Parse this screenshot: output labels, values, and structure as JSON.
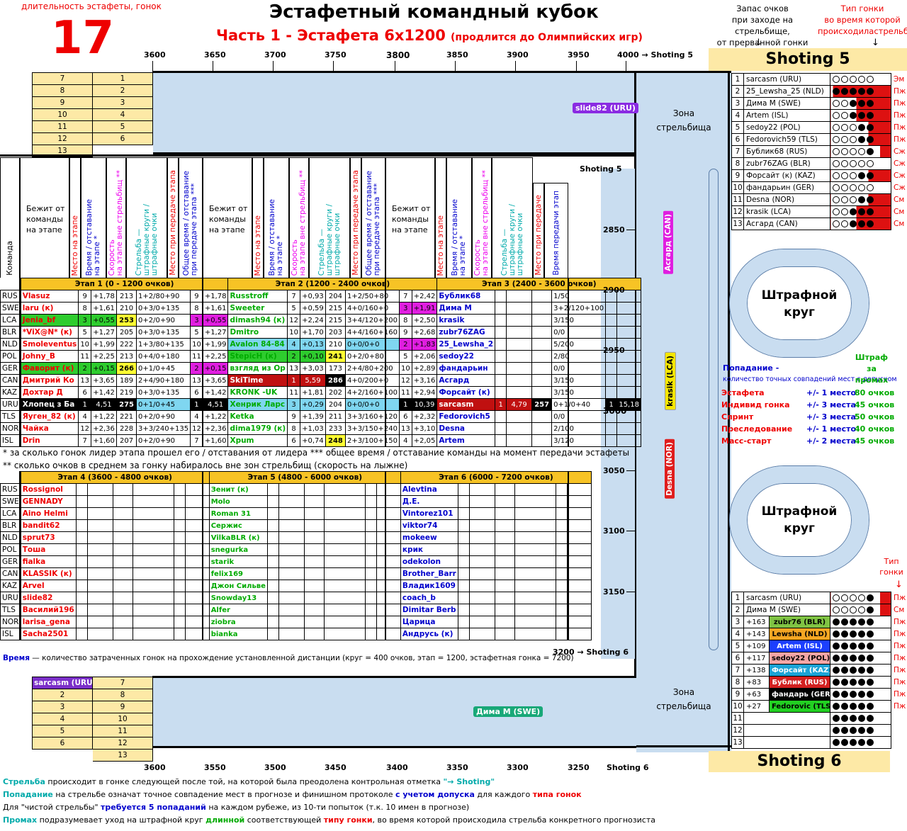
{
  "header": {
    "count_label": "длительность эстафеты, гонок",
    "count": "17",
    "title": "Эстафетный командный кубок",
    "subtitle": "Часть 1 - Эстафета 6х1200",
    "subtitle_note": "(продлится до Олимпийских игр)",
    "reserve_label": "Запас очков\nпри заходе на стрельбище,\nот прерванной гонки",
    "race_type_label": "Тип гонки\nво время которой\nпроисходиластрельба"
  },
  "top_axis": {
    "ticks": [
      "3600",
      "3650",
      "3700",
      "3750",
      "3800",
      "3850",
      "3900",
      "3950",
      "4000 → Shoting 5"
    ]
  },
  "bottom_axis": {
    "ticks": [
      "3600",
      "3550",
      "3500",
      "3450",
      "3400",
      "3350",
      "3300",
      "3250",
      "Shoting 6"
    ]
  },
  "right_axis": {
    "ticks": [
      "2850",
      "2900",
      "2950",
      "3000",
      "3050",
      "3100",
      "3150"
    ],
    "top_label": "Shoting 5",
    "bottom_label": "3200 → Shoting 6"
  },
  "zones": {
    "shooting": "Зона\nстрельбища",
    "penalty": "Штрафной\nкруг"
  },
  "top_slots": {
    "left": [
      "7",
      "8",
      "9",
      "10",
      "11",
      "12",
      "13"
    ],
    "right": [
      "1",
      "2",
      "3",
      "4",
      "5",
      "6"
    ]
  },
  "bottom_slots": {
    "left": [
      "sarcasm (URU)",
      "2",
      "3",
      "4",
      "5",
      "6"
    ],
    "right": [
      "7",
      "8",
      "9",
      "10",
      "11",
      "12",
      "13"
    ]
  },
  "chips": {
    "slide82": "slide82 (URU)",
    "dima": "Дима М (SWE)",
    "asgard": "Асгард (CAN)",
    "krasik": "krasik (LCA)",
    "desna": "Desna (NOR)"
  },
  "col_headers": {
    "team": "Команда",
    "runner": "Бежит от\nкоманды\nна этапе",
    "place": "Место на этапе",
    "time": "Время / отставание\nна этапе *",
    "speed": "Скорость\nна этапе вне стрельбищ **",
    "shoot": "Стрельба —\nштрафные круги /\nштрафные очки",
    "handoff_place": "Место при передаче этапа",
    "total": "Общее время / отставание\nпри передаче этапа ***",
    "handoff_place3": "Место при передаче",
    "handoff_time3": "Время передачи этап",
    "shoting5": "Shoting 5"
  },
  "stage_titles": [
    "Этап 1  (0 - 1200 очков)",
    "Этап 2  (1200 - 2400 очков)",
    "Этап 3  (2400 - 3600 очков)",
    "Этап 4  (3600 - 4800 очков)",
    "Этап 5  (4800 - 6000 очков)",
    "Этап 6  (6000 - 7200 очков)"
  ],
  "teams": [
    "RUS",
    "SWE",
    "LCA",
    "BLR",
    "NLD",
    "POL",
    "GER",
    "CAN",
    "KAZ",
    "URU",
    "TLS",
    "NOR",
    "ISL"
  ],
  "stage1": [
    [
      "Vlasuz",
      "9",
      "+1,78",
      "213",
      "1+2/80+90",
      "9",
      "+1,78"
    ],
    [
      "laru (к)",
      "8",
      "+1,61",
      "210",
      "0+3/0+135",
      "8",
      "+1,61"
    ],
    [
      "Jenia_bf",
      "3",
      "+0,55",
      "253",
      "0+2/0+90",
      "3",
      "+0,55"
    ],
    [
      "*ViX@N* (к)",
      "5",
      "+1,27",
      "205",
      "0+3/0+135",
      "5",
      "+1,27"
    ],
    [
      "Smoleventus",
      "10",
      "+1,99",
      "222",
      "1+3/80+135",
      "10",
      "+1,99"
    ],
    [
      "Johny_B",
      "11",
      "+2,25",
      "213",
      "0+4/0+180",
      "11",
      "+2,25"
    ],
    [
      "Фаворит (к)",
      "2",
      "+0,15",
      "266",
      "0+1/0+45",
      "2",
      "+0,15"
    ],
    [
      "Дмитрий Ко",
      "13",
      "+3,65",
      "189",
      "2+4/90+180",
      "13",
      "+3,65"
    ],
    [
      "Дохтар Д",
      "6",
      "+1,42",
      "219",
      "0+3/0+135",
      "6",
      "+1,42"
    ],
    [
      "Хлопец з Ба",
      "1",
      "4,51",
      "275",
      "0+1/0+45",
      "1",
      "4,51"
    ],
    [
      "Яуген_82 (к)",
      "4",
      "+1,22",
      "221",
      "0+2/0+90",
      "4",
      "+1,22"
    ],
    [
      "Чайка",
      "12",
      "+2,36",
      "228",
      "3+3/240+135",
      "12",
      "+2,36"
    ],
    [
      "Drin",
      "7",
      "+1,60",
      "207",
      "0+2/0+90",
      "7",
      "+1,60"
    ]
  ],
  "stage2": [
    [
      "Russtroff",
      "7",
      "+0,93",
      "204",
      "1+2/50+80",
      "7",
      "+2,42"
    ],
    [
      "Sweeter",
      "5",
      "+0,59",
      "215",
      "4+0/160+0",
      "3",
      "+1,91"
    ],
    [
      "dimash94 (к)",
      "12",
      "+2,24",
      "215",
      "3+4/120+200",
      "8",
      "+2,50"
    ],
    [
      "Dmitro",
      "10",
      "+1,70",
      "203",
      "4+4/160+160",
      "9",
      "+2,68"
    ],
    [
      "Avalon 84-84",
      "4",
      "+0,13",
      "210",
      "0+0/0+0",
      "2",
      "+1,83"
    ],
    [
      "StepicH (к)",
      "2",
      "+0,10",
      "241",
      "0+2/0+80",
      "5",
      "+2,06"
    ],
    [
      "взгляд из Ор",
      "13",
      "+3,03",
      "173",
      "2+4/80+200",
      "10",
      "+2,89"
    ],
    [
      "SkiTime",
      "1",
      "5,59",
      "286",
      "4+0/200+0",
      "12",
      "+3,16"
    ],
    [
      "KRONK -UK",
      "11",
      "+1,81",
      "202",
      "4+2/160+100",
      "11",
      "+2,94"
    ],
    [
      "Хенрик Ларс",
      "3",
      "+0,29",
      "204",
      "0+0/0+0",
      "1",
      "10,39"
    ],
    [
      "Ketka",
      "9",
      "+1,39",
      "211",
      "3+3/160+120",
      "6",
      "+2,32"
    ],
    [
      "dima1979 (к)",
      "8",
      "+1,03",
      "233",
      "3+3/150+240",
      "13",
      "+3,10"
    ],
    [
      "Xpum",
      "6",
      "+0,74",
      "248",
      "2+3/100+150",
      "4",
      "+2,05"
    ]
  ],
  "stage3": [
    [
      "Бублик68",
      "",
      "",
      "",
      "1/50",
      "",
      ""
    ],
    [
      "Дима М",
      "",
      "",
      "",
      "3+2/120+100",
      "",
      ""
    ],
    [
      "krasik",
      "",
      "",
      "",
      "3/150",
      "",
      ""
    ],
    [
      "zubr76ZAG",
      "",
      "",
      "",
      "0/0",
      "",
      ""
    ],
    [
      "25_Lewsha_2",
      "",
      "",
      "",
      "5/200",
      "",
      ""
    ],
    [
      "sedoy22",
      "",
      "",
      "",
      "2/80",
      "",
      ""
    ],
    [
      "фандарьин",
      "",
      "",
      "",
      "0/0",
      "",
      ""
    ],
    [
      "Асгард",
      "",
      "",
      "",
      "3/150",
      "",
      ""
    ],
    [
      "Форсайт (к)",
      "",
      "",
      "",
      "3/150",
      "",
      ""
    ],
    [
      "sarcasm",
      "1",
      "4,79",
      "257",
      "0+1/0+40",
      "1",
      "15,18"
    ],
    [
      "Fedorovich5",
      "",
      "",
      "",
      "0/0",
      "",
      ""
    ],
    [
      "Desna",
      "",
      "",
      "",
      "2/100",
      "",
      ""
    ],
    [
      "Artem",
      "",
      "",
      "",
      "3/120",
      "",
      ""
    ]
  ],
  "stage4": [
    "Rossignol",
    "GENNADY",
    "Aino Helmi",
    "bandit62",
    "sprut73",
    "Тоша",
    "fialka",
    "KLASSIK (к)",
    "Arvel",
    "slide82",
    "Василий196",
    "larisa_gena",
    "Sacha2501"
  ],
  "stage5": [
    "Зенит (к)",
    "Molo",
    "Roman 31",
    "Сержис",
    "VilkaBLR (к)",
    "snegurka",
    "starik",
    "felix169",
    "Джон Сильве",
    "Snowday13",
    "Alfer",
    "ziobra",
    "bianka"
  ],
  "stage6": [
    "Alevtina",
    "Д.Е.",
    "Vintorez101",
    "viktor74",
    "mokeew",
    "крик",
    "odekolon",
    "Brother_Barr",
    "Владик1609",
    "coach_b",
    "Dimitar Berb",
    "Царица",
    "Андрусь (к)"
  ],
  "footnotes": [
    "* за сколько гонок лидер этапа прошел его / отставания от лидера *** общее время / отставание команды на момент передачи эстафеты",
    "** сколько очков в среднем за гонку набиралось вне зон стрельбищ (скорость на лыжне)"
  ],
  "time_note": {
    "word": "Время",
    "rest": " — количество затраченных гонок на прохождение установленной дистанции (круг = 400 очков, этап = 1200, эстафетная гонка = 7200)"
  },
  "shoting5": {
    "title": "Shoting 5",
    "rows": [
      {
        "n": "1",
        "name": "sarcasm (URU)",
        "dots": "ooooo",
        "type": "Эм"
      },
      {
        "n": "2",
        "name": "25_Lewsha_25 (NLD)",
        "dots": "RRRRR",
        "type": "Пж"
      },
      {
        "n": "3",
        "name": "Дима М (SWE)",
        "dots": "ooRRR",
        "type": "Пж"
      },
      {
        "n": "4",
        "name": "Artem (ISL)",
        "dots": "ooRRR",
        "type": "Пж"
      },
      {
        "n": "5",
        "name": "sedoy22  (POL)",
        "dots": "oooRR",
        "type": "Пж"
      },
      {
        "n": "6",
        "name": "Fedorovich59 (TLS)",
        "dots": "oooRR",
        "type": "Пж"
      },
      {
        "n": "7",
        "name": "Бублик68 (RUS)",
        "dots": "ooooR",
        "type": "Сж"
      },
      {
        "n": "8",
        "name": "zubr76ZAG (BLR)",
        "dots": "ooooo",
        "type": "Сж"
      },
      {
        "n": "9",
        "name": "Форсайт (к) (KAZ)",
        "dots": "oooRR",
        "type": "Сж"
      },
      {
        "n": "10",
        "name": "фандарьин (GER)",
        "dots": "ooooo",
        "type": "Сж"
      },
      {
        "n": "11",
        "name": "Desna (NOR)",
        "dots": "oooRR",
        "type": "См"
      },
      {
        "n": "12",
        "name": "krasik (LCA)",
        "dots": "ooRRR",
        "type": "См"
      },
      {
        "n": "13",
        "name": "Асгард (CAN)",
        "dots": "ooRRR",
        "type": "См"
      }
    ]
  },
  "shoting6": {
    "title": "Shoting 6",
    "type_label": "Тип\nгонки",
    "rows": [
      {
        "n": "1",
        "name": "sarcasm (URU)",
        "dots": "ooooR",
        "type": "Пж",
        "bg": "",
        "pts": ""
      },
      {
        "n": "2",
        "name": "Дима М (SWE)",
        "dots": "ooooR",
        "type": "См",
        "bg": "",
        "pts": ""
      },
      {
        "n": "3",
        "pts": "+163",
        "name": "zubr76 (BLR)",
        "dots": "fffff",
        "type": "Пж",
        "bg": "#7fc343"
      },
      {
        "n": "4",
        "pts": "+143",
        "name": "Lewsha (NLD)",
        "dots": "fffff",
        "type": "Пж",
        "bg": "#f5a623"
      },
      {
        "n": "5",
        "pts": "+109",
        "name": "Artem (ISL)",
        "dots": "fffff",
        "type": "Пж",
        "bg": "#1c3fff"
      },
      {
        "n": "6",
        "pts": "+117",
        "name": "sedoy22 (POL)",
        "dots": "fffff",
        "type": "Пж",
        "bg": "#f4a6a6"
      },
      {
        "n": "7",
        "pts": "+138",
        "name": "Форсайт (KAZ)",
        "dots": "fffff",
        "type": "Пж",
        "bg": "#1ba3d6"
      },
      {
        "n": "8",
        "pts": "+83",
        "name": "Бублик (RUS)",
        "dots": "fffff",
        "type": "Пж",
        "bg": "#d32020"
      },
      {
        "n": "9",
        "pts": "+63",
        "name": "фандарь (GER)",
        "dots": "fffff",
        "type": "Пж",
        "bg": "#000000"
      },
      {
        "n": "10",
        "pts": "+27",
        "name": "Fedorovic (TLS)",
        "dots": "fffff",
        "type": "Пж",
        "bg": "#22d022"
      },
      {
        "n": "11",
        "pts": "",
        "name": "",
        "dots": "fffff",
        "type": "",
        "bg": ""
      },
      {
        "n": "12",
        "pts": "",
        "name": "",
        "dots": "fffff",
        "type": "",
        "bg": ""
      },
      {
        "n": "13",
        "pts": "",
        "name": "",
        "dots": "fffff",
        "type": "",
        "bg": ""
      }
    ]
  },
  "scoring": {
    "hit_label": "Попадание -",
    "hit_desc": "количество точных совпадений мест с допуском",
    "miss_label": "Штраф за\nпромах",
    "rows": [
      [
        "Эстафета",
        "+/- 1 место",
        "80 очков"
      ],
      [
        "Индивид гонка",
        "+/- 3 места",
        "45 очков"
      ],
      [
        "Спринт",
        "+/- 3 места",
        "50 очков"
      ],
      [
        "Преследование",
        "+/- 1 место",
        "40 очков"
      ],
      [
        "Масс-старт",
        "+/- 2 места",
        "45 очков"
      ]
    ]
  },
  "bottom_notes": [
    [
      [
        "Стрельба",
        "cy"
      ],
      [
        " происходит в гонке следующей после той, на которой была преодолена контрольная отметка ",
        ""
      ],
      [
        "\"→ Shoting\"",
        "cy"
      ]
    ],
    [
      [
        "Попадание",
        "cy"
      ],
      [
        " на стрельбе означат точное совпадение мест в прогнозе и финишном протоколе ",
        ""
      ],
      [
        "с учетом допуска",
        "blue"
      ],
      [
        " для каждого ",
        ""
      ],
      [
        "типа гонок",
        "red"
      ]
    ],
    [
      [
        "Для \"чистой стрельбы\" ",
        ""
      ],
      [
        "требуется 5 попаданий",
        "blue"
      ],
      [
        " на каждом рубеже, из 10-ти попыток (т.к. 10 имен в прогнозе)",
        ""
      ]
    ],
    [
      [
        "Промах",
        "cy"
      ],
      [
        " подразумевает уход на штрафной круг ",
        ""
      ],
      [
        "длинной",
        "g"
      ],
      [
        " соответствующей ",
        ""
      ],
      [
        "типу гонки",
        "red"
      ],
      [
        ", во время которой происходила стрельба конкретного прогнозиста",
        ""
      ]
    ]
  ]
}
